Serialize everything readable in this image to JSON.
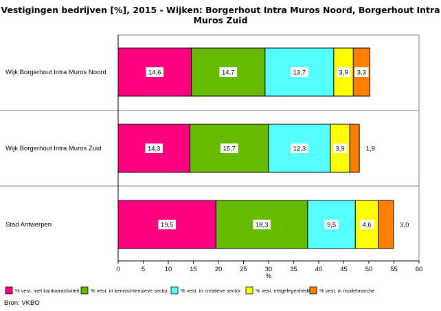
{
  "chart_data": {
    "type": "bar",
    "orientation": "horizontal",
    "stacked": true,
    "title": "Vestigingen bedrijven [%], 2015 - Wijken: Borgerhout Intra Muros Noord, Borgerhout Intra Muros Zuid",
    "title_lines": [
      "Vestigingen bedrijven [%], 2015 - Wijken: Borgerhout Intra Muros Noord, Borgerhout Intra",
      "Muros Zuid"
    ],
    "categories": [
      "Wijk Borgerhout Intra Muros Noord",
      "Wijk Borgerhout Intra Muros Zuid",
      "Stad Antwerpen"
    ],
    "series": [
      {
        "name": "% vest. met kantooractiviteit",
        "color": "#ff0080",
        "values": [
          14.6,
          14.3,
          19.5
        ],
        "labels": [
          "14,6",
          "14,3",
          "19,5"
        ]
      },
      {
        "name": "% vest. in kennisintensieve sector",
        "color": "#66bb00",
        "values": [
          14.7,
          15.7,
          18.3
        ],
        "labels": [
          "14,7",
          "15,7",
          "18,3"
        ]
      },
      {
        "name": "% vest. in creatieve sector",
        "color": "#55ffff",
        "values": [
          13.7,
          12.3,
          9.5
        ],
        "labels": [
          "13,7",
          "12,3",
          "9,5"
        ]
      },
      {
        "name": "% vest. eetgelegenheden",
        "color": "#ffff00",
        "values": [
          3.9,
          3.9,
          4.6
        ],
        "labels": [
          "3,9",
          "3,9",
          "4,6"
        ]
      },
      {
        "name": "% vest. in modebranche",
        "color": "#ff8000",
        "values": [
          3.3,
          1.9,
          3.0
        ],
        "labels": [
          "3,3",
          "1,9",
          "3,0"
        ]
      }
    ],
    "xlabel": "%",
    "xlim": [
      0,
      60
    ],
    "xticks": [
      "0",
      "5",
      "10",
      "15",
      "20",
      "25",
      "30",
      "35",
      "40",
      "45",
      "50",
      "55",
      "60"
    ],
    "grid": false,
    "legend_position": "bottom",
    "source": "Bron: VKBO"
  }
}
